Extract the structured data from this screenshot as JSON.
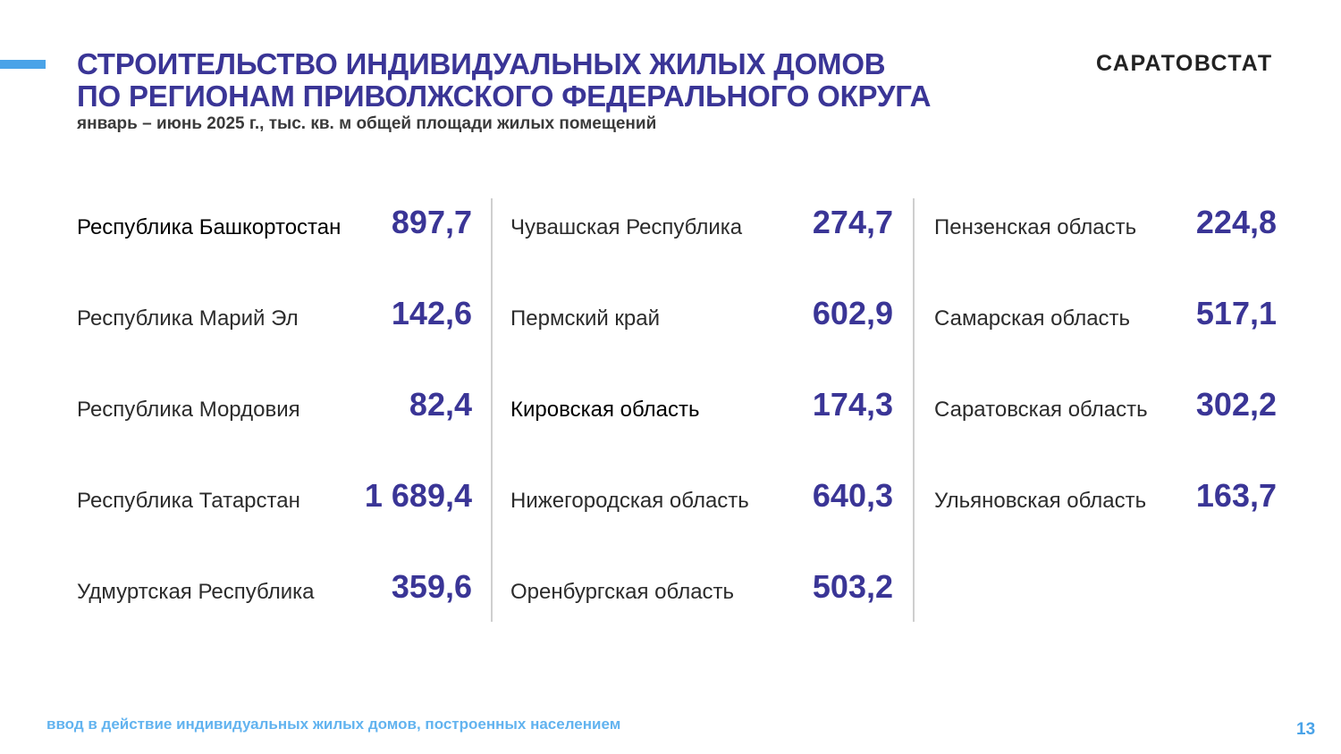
{
  "header": {
    "title_line1": "СТРОИТЕЛЬСТВО ИНДИВИДУАЛЬНЫХ ЖИЛЫХ ДОМОВ",
    "title_line2": "ПО РЕГИОНАМ ПРИВОЛЖСКОГО ФЕДЕРАЛЬНОГО ОКРУГА",
    "subtitle": "январь – июнь 2025 г., тыс. кв. м общей площади жилых помещений",
    "brand": "САРАТОВСТАТ"
  },
  "columns": [
    {
      "regions": [
        {
          "name": "Республика Башкортостан",
          "value": "897,7"
        },
        {
          "name": "Республика Марий Эл",
          "value": "142,6"
        },
        {
          "name": "Республика Мордовия",
          "value": "82,4"
        },
        {
          "name": "Республика Татарстан",
          "value": "1 689,4"
        },
        {
          "name": "Удмуртская Республика",
          "value": "359,6"
        }
      ]
    },
    {
      "regions": [
        {
          "name": "Чувашская Республика",
          "value": "274,7"
        },
        {
          "name": "Пермский край",
          "value": "602,9"
        },
        {
          "name": "Кировская область",
          "value": "174,3"
        },
        {
          "name": "Нижегородская область",
          "value": "640,3"
        },
        {
          "name": "Оренбургская область",
          "value": "503,2"
        }
      ]
    },
    {
      "regions": [
        {
          "name": "Пензенская область",
          "value": "224,8"
        },
        {
          "name": "Самарская область",
          "value": "517,1"
        },
        {
          "name": "Саратовская область",
          "value": "302,2"
        },
        {
          "name": "Ульяновская область",
          "value": "163,7"
        }
      ]
    }
  ],
  "footer": {
    "note": "ввод в действие индивидуальных жилых домов, построенных населением",
    "page_number": "13"
  },
  "colors": {
    "title": "#3a3596",
    "value": "#3a3596",
    "accent": "#4aa3e8",
    "footer_text": "#62b3ef"
  }
}
